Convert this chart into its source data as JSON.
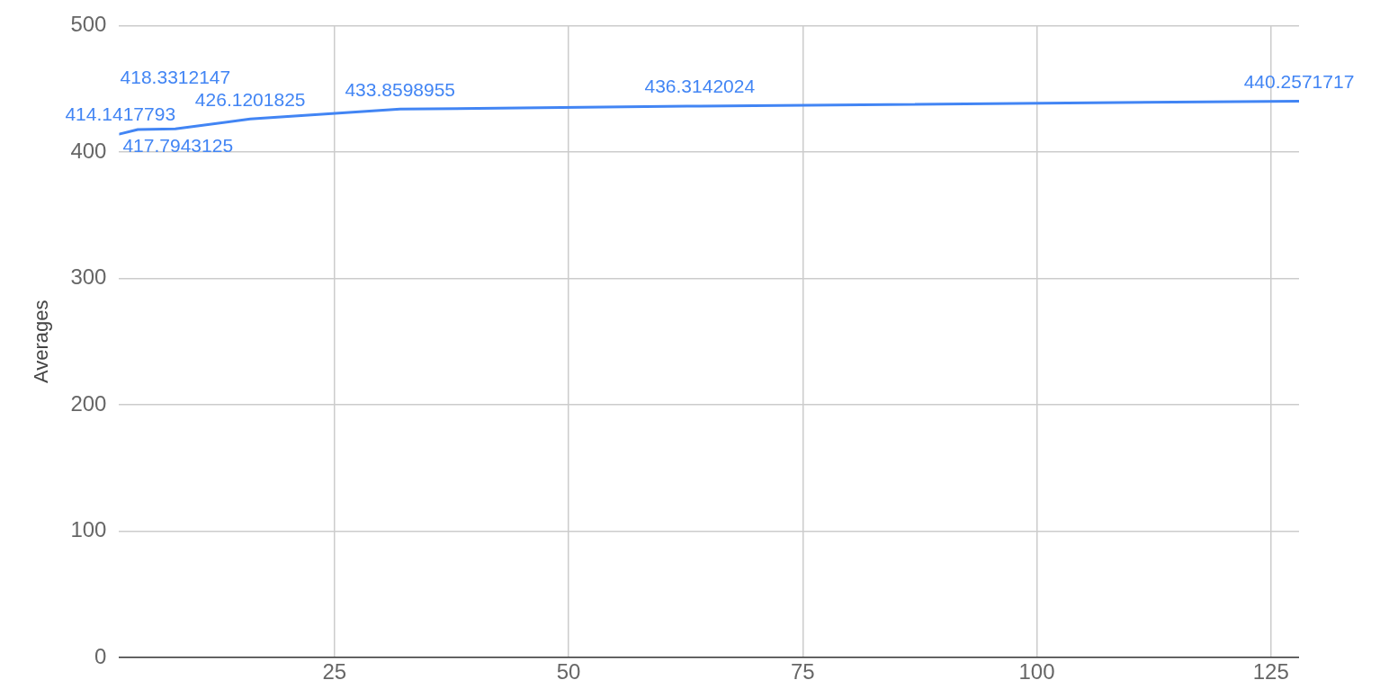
{
  "chart_data": {
    "type": "line",
    "ylabel": "Averages",
    "x": [
      2,
      4,
      8,
      16,
      32,
      64,
      128
    ],
    "series": [
      {
        "color": "#4285f4",
        "values": [
          414.1417793,
          417.7943125,
          418.3312147,
          426.1201825,
          433.8598955,
          436.3142024,
          440.2571717
        ]
      }
    ],
    "xlim": [
      2,
      128
    ],
    "xticks": [
      25,
      50,
      75,
      100,
      125
    ],
    "ylim": [
      0,
      500
    ],
    "yticks": [
      0,
      100,
      200,
      300,
      400,
      500
    ],
    "grid": true,
    "legend": false,
    "marker": "none",
    "line_style": "solid",
    "data_labels": true
  }
}
